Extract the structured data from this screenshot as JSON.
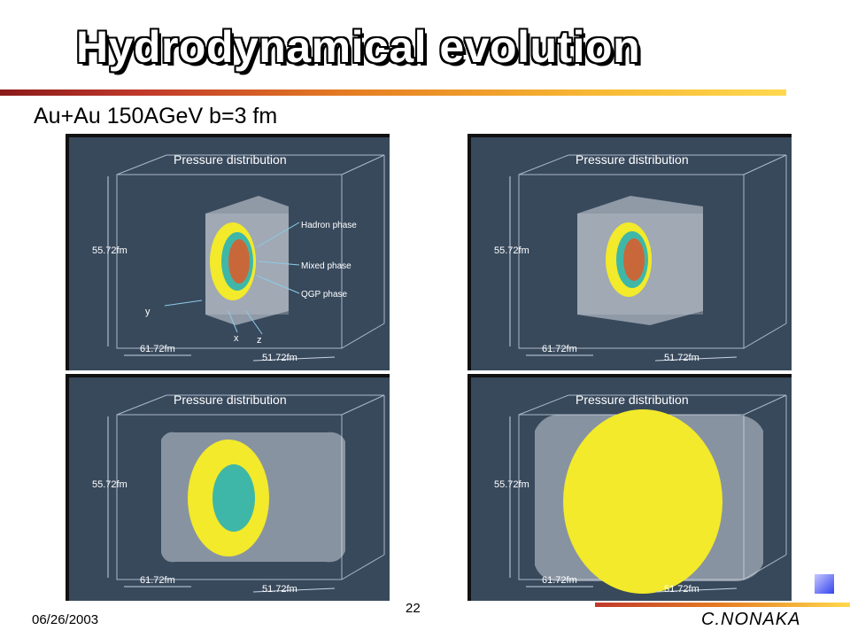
{
  "slide": {
    "title": "Hydrodynamical evolution",
    "subtitle": "Au+Au 150AGeV  b=3 fm",
    "date": "06/26/2003",
    "page_number": "22",
    "author": "C.NONAKA"
  },
  "panels": [
    {
      "heading": "Pressure distribution",
      "height_label": "55.72fm",
      "depth_label": "61.72fm",
      "width_label": "51.72fm",
      "annotations": [
        "Hadron phase",
        "Mixed phase",
        "QGP phase"
      ],
      "axis_labels": [
        "y",
        "x",
        "z"
      ]
    },
    {
      "heading": "Pressure distribution",
      "height_label": "55.72fm",
      "depth_label": "61.72fm",
      "width_label": "51.72fm"
    },
    {
      "heading": "Pressure distribution",
      "height_label": "55.72fm",
      "depth_label": "61.72fm",
      "width_label": "51.72fm"
    },
    {
      "heading": "Pressure distribution",
      "height_label": "55.72fm",
      "depth_label": "61.72fm",
      "width_label": "51.72fm"
    }
  ],
  "colors": {
    "panel_bg": "#38495c",
    "hadron": "#f2ea2a",
    "mixed": "#3fb7a8",
    "qgp": "#c8683a"
  }
}
